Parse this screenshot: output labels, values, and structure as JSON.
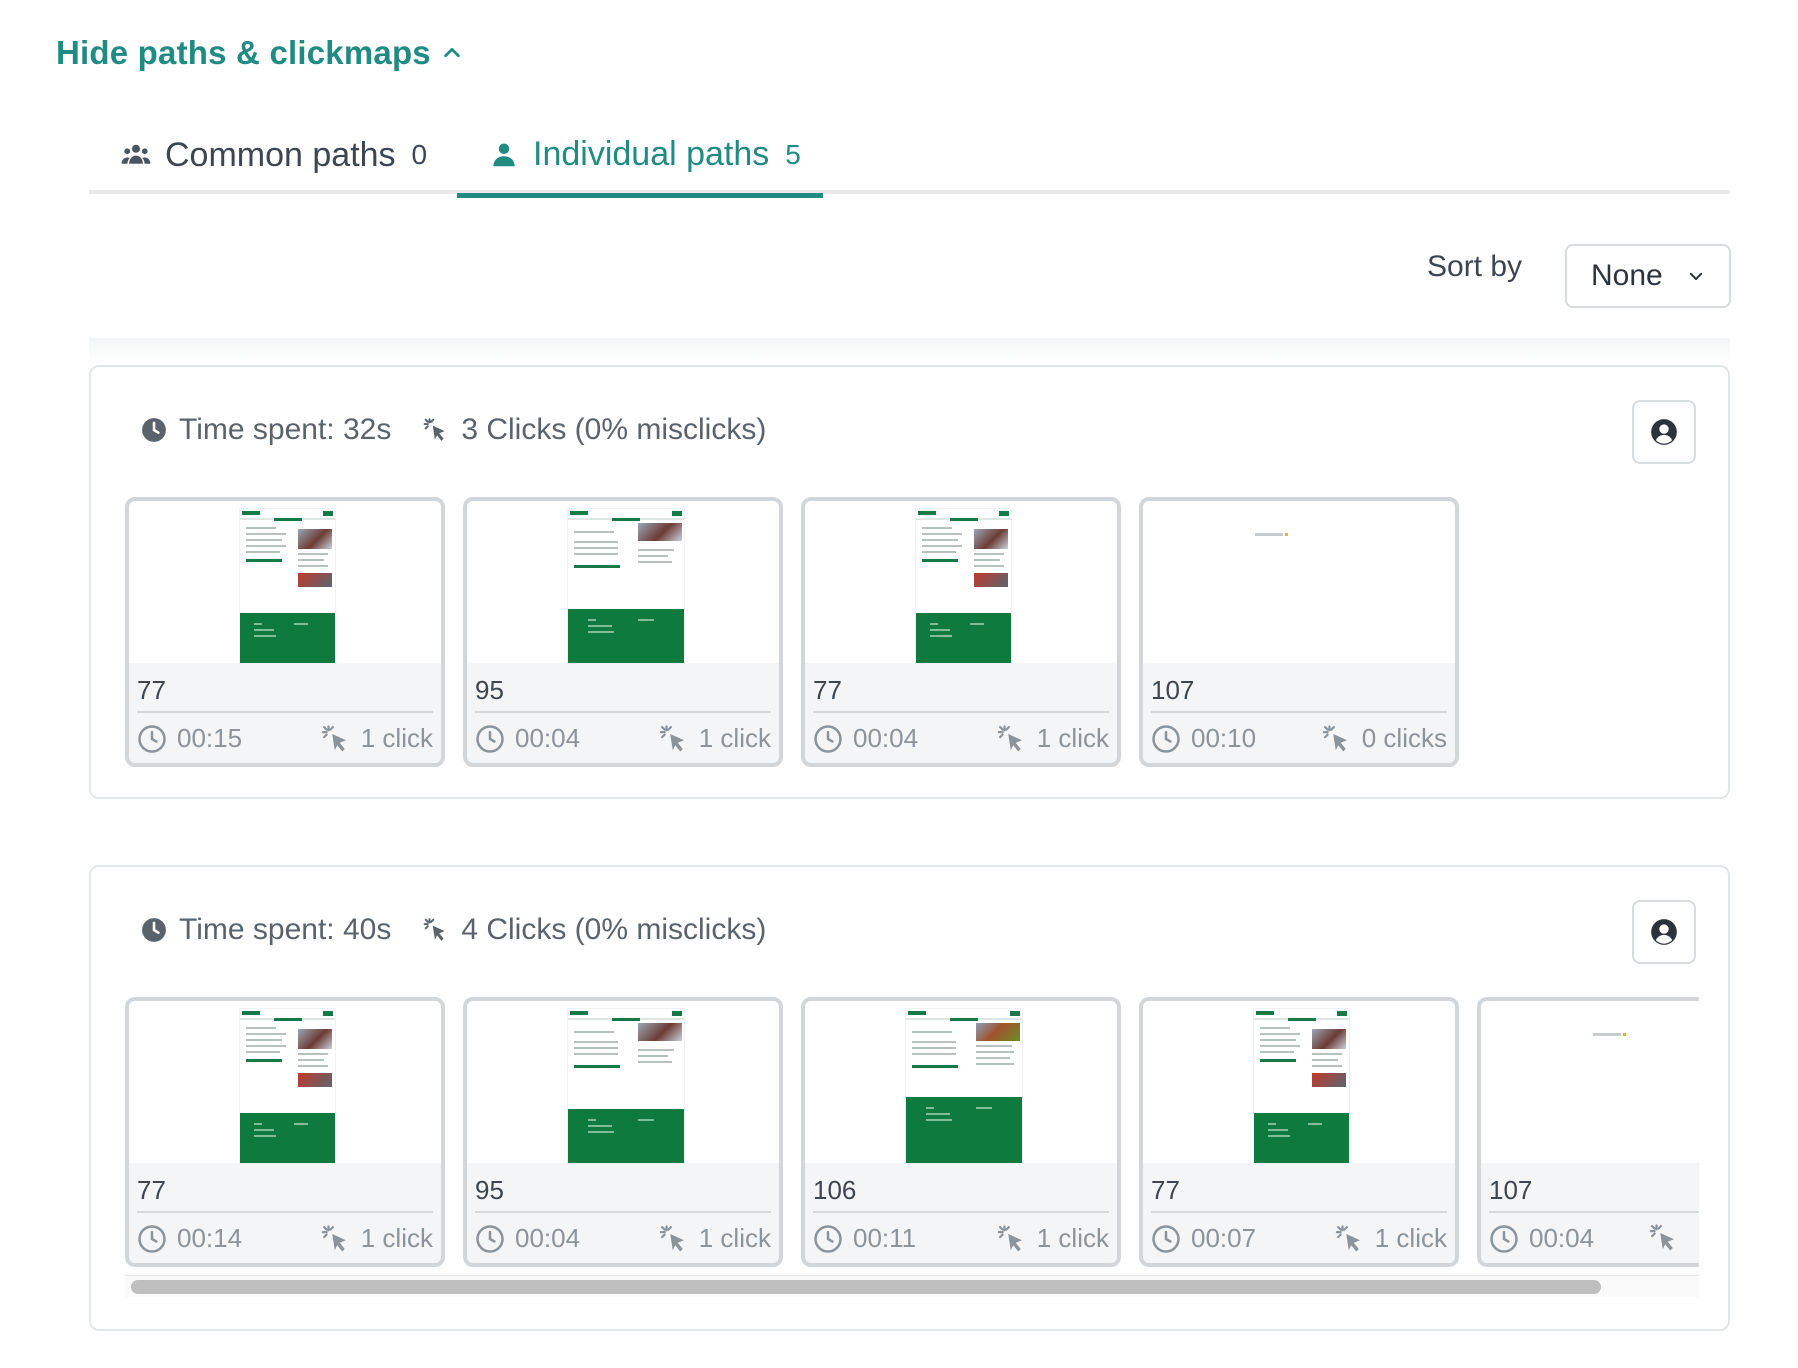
{
  "toggle": {
    "label": "Hide paths & clickmaps",
    "icon": "chevron-up-icon"
  },
  "tabs": {
    "common": {
      "label": "Common paths",
      "count": "0",
      "icon": "group-icon"
    },
    "individual": {
      "label": "Individual paths",
      "count": "5",
      "icon": "person-icon",
      "active": true
    }
  },
  "sort": {
    "label": "Sort by",
    "value": "None"
  },
  "colors": {
    "accent": "#1f8b82",
    "thumb_green": "#0f7a3e"
  },
  "paths": [
    {
      "time_spent": "Time spent: 32s",
      "clicks_summary": "3 Clicks (0% misclicks)",
      "steps": [
        {
          "id": "77",
          "time": "00:15",
          "clicks": "1 click"
        },
        {
          "id": "95",
          "time": "00:04",
          "clicks": "1 click"
        },
        {
          "id": "77",
          "time": "00:04",
          "clicks": "1 click"
        },
        {
          "id": "107",
          "time": "00:10",
          "clicks": "0 clicks"
        }
      ]
    },
    {
      "time_spent": "Time spent: 40s",
      "clicks_summary": "4 Clicks (0% misclicks)",
      "steps": [
        {
          "id": "77",
          "time": "00:14",
          "clicks": "1 click"
        },
        {
          "id": "95",
          "time": "00:04",
          "clicks": "1 click"
        },
        {
          "id": "106",
          "time": "00:11",
          "clicks": "1 click"
        },
        {
          "id": "77",
          "time": "00:07",
          "clicks": "1 click"
        },
        {
          "id": "107",
          "time": "00:04",
          "clicks": ""
        }
      ]
    }
  ]
}
